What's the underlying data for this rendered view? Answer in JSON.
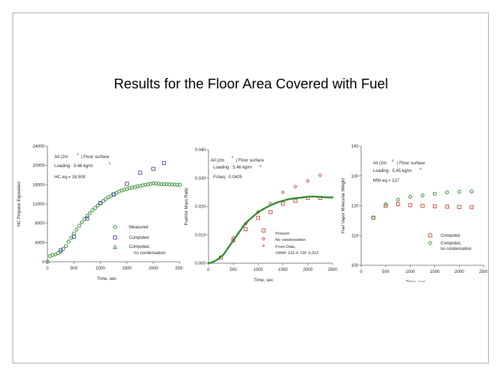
{
  "slide": {
    "title": "Results for the Floor Area Covered with Fuel"
  },
  "chart_data": [
    {
      "type": "scatter",
      "id": "hc",
      "xlabel": "Time, sec",
      "ylabel": "HC Propane Equivalent",
      "xlim": [
        0,
        2500
      ],
      "ylim": [
        0,
        24000
      ],
      "xticks": [
        0,
        500,
        1000,
        1500,
        2000,
        2500
      ],
      "yticks": [
        0,
        4000,
        8000,
        12000,
        16000,
        20000,
        24000
      ],
      "annotations": [
        "All (2m",
        "2",
        ") Floor surface",
        "Loading : 5.46 kg/m",
        "3",
        "HC eq.= 28,500"
      ],
      "series": [
        {
          "name": "Measured",
          "marker": "circle",
          "color": "#2a8a2a",
          "x": [
            0,
            50,
            100,
            150,
            200,
            250,
            300,
            350,
            400,
            450,
            500,
            550,
            600,
            650,
            700,
            750,
            800,
            850,
            900,
            950,
            1000,
            1050,
            1100,
            1150,
            1200,
            1250,
            1300,
            1350,
            1400,
            1450,
            1500,
            1550,
            1600,
            1650,
            1700,
            1750,
            1800,
            1850,
            1900,
            1950,
            2000,
            2050,
            2100,
            2150,
            2200,
            2250,
            2300,
            2350,
            2400,
            2450,
            2500
          ],
          "y": [
            0,
            1200,
            1400,
            1550,
            1800,
            2100,
            2700,
            3300,
            4200,
            5000,
            5900,
            6700,
            7500,
            8200,
            8900,
            9500,
            10100,
            10700,
            11200,
            11700,
            12200,
            12600,
            13000,
            13400,
            13700,
            14000,
            14300,
            14600,
            14800,
            15000,
            15150,
            15300,
            15400,
            15500,
            15650,
            15750,
            15900,
            16000,
            16100,
            16200,
            16300,
            16250,
            16200,
            16150,
            16100,
            16100,
            16100,
            16050,
            16050,
            16000,
            16000
          ]
        },
        {
          "name": "Computed",
          "marker": "square",
          "color": "#2b3f9e",
          "x": [
            250,
            500,
            750,
            1000,
            1250,
            1500,
            1750,
            2000,
            2200
          ],
          "y": [
            2400,
            5200,
            9000,
            12200,
            14000,
            16200,
            18500,
            19300,
            20500
          ]
        },
        {
          "name": "Computed, no condensation",
          "marker": "triangle",
          "color": "#2a8a2a",
          "x": [],
          "y": []
        }
      ],
      "legend_labels": [
        "Measured",
        "Computed",
        "Computed,",
        "no condensation"
      ]
    },
    {
      "type": "scatter",
      "id": "fa",
      "xlabel": "Time, sec",
      "ylabel": "Fuel/Air Mass Ratio",
      "xlim": [
        0,
        2500
      ],
      "ylim": [
        0,
        0.04
      ],
      "xticks": [
        0,
        500,
        1000,
        1500,
        2000,
        2500
      ],
      "yticks": [
        0,
        0.01,
        0.02,
        0.03,
        0.04
      ],
      "ytick_labels": [
        "0.000",
        "0.010",
        "0.020",
        "0.030",
        "0.040"
      ],
      "annotations": [
        "All (2m",
        "2",
        ") Floor surface",
        "Loading : 5.46 kg/m",
        "3",
        "F/Aeq.: 0.0425"
      ],
      "series": [
        {
          "name": "Present",
          "marker": "square",
          "color": "#c0392b",
          "x": [
            250,
            500,
            750,
            1000,
            1250,
            1500,
            1750,
            2000,
            2250
          ],
          "y": [
            0.002,
            0.008,
            0.012,
            0.016,
            0.018,
            0.021,
            0.022,
            0.023,
            0.023
          ]
        },
        {
          "name": "No condensation",
          "marker": "diamond",
          "color": "#c0392b",
          "x": [
            500,
            750,
            1000,
            1250,
            1500,
            1750,
            2000,
            2250
          ],
          "y": [
            0.009,
            0.014,
            0.018,
            0.021,
            0.025,
            0.027,
            0.029,
            0.031
          ]
        },
        {
          "name": "From Data, VWW: 132.4, CR: 0.313",
          "marker": "line",
          "color": "#2a8a2a",
          "x": [
            0,
            100,
            200,
            300,
            400,
            500,
            600,
            700,
            800,
            900,
            1000,
            1100,
            1200,
            1300,
            1400,
            1500,
            1600,
            1700,
            1800,
            1900,
            2000,
            2100,
            2200,
            2300,
            2400,
            2500
          ],
          "y": [
            0,
            0.0005,
            0.0015,
            0.003,
            0.0055,
            0.008,
            0.0105,
            0.013,
            0.015,
            0.0165,
            0.018,
            0.019,
            0.02,
            0.0208,
            0.0215,
            0.022,
            0.0225,
            0.0228,
            0.023,
            0.0232,
            0.0234,
            0.0235,
            0.0234,
            0.0233,
            0.0232,
            0.0232
          ]
        }
      ],
      "legend_labels": [
        "Present",
        "No condensation",
        "From Data,",
        "VWW: 132.4, CR: 0.313"
      ]
    },
    {
      "type": "scatter",
      "id": "mw",
      "xlabel": "Time, sec",
      "ylabel": "Fuel Vapor Molecular Weight",
      "xlim": [
        0,
        2500
      ],
      "ylim": [
        100,
        140
      ],
      "xticks": [
        0,
        500,
        1000,
        1500,
        2000,
        2500
      ],
      "yticks": [
        100,
        110,
        120,
        130,
        140
      ],
      "annotations": [
        "All (2m",
        "2",
        ") Floor surface",
        "Loading : 5.45 kg/m",
        "3",
        "MW eq.= 127"
      ],
      "series": [
        {
          "name": "Computed",
          "marker": "square",
          "color": "#c0392b",
          "x": [
            250,
            500,
            750,
            1000,
            1250,
            1500,
            1750,
            2000,
            2250
          ],
          "y": [
            116,
            120,
            120.5,
            120.2,
            120,
            119.8,
            119.7,
            119.6,
            119.5
          ]
        },
        {
          "name": "Computed, no condensation",
          "marker": "circle",
          "color": "#2a8a2a",
          "x": [
            250,
            500,
            750,
            1000,
            1250,
            1500,
            1750,
            2000,
            2250
          ],
          "y": [
            116,
            120.5,
            122,
            123,
            123.5,
            124,
            124.5,
            124.7,
            124.8
          ]
        }
      ],
      "legend_labels": [
        "Computed",
        "Computed,",
        "no condensation"
      ]
    }
  ]
}
